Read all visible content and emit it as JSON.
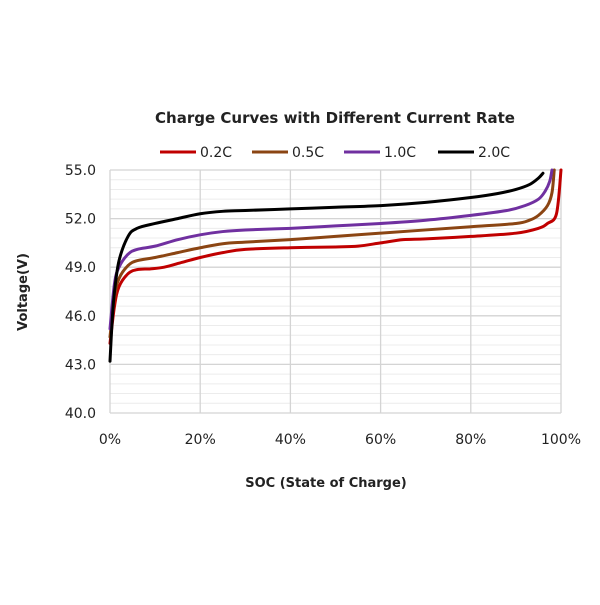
{
  "chart_data": {
    "type": "line",
    "title": "Charge Curves with Different Current Rate",
    "xlabel": "SOC (State of Charge)",
    "ylabel": "Voltage(V)",
    "xlim": [
      0,
      100
    ],
    "ylim": [
      40,
      55
    ],
    "x_ticks": [
      "0%",
      "20%",
      "40%",
      "60%",
      "80%",
      "100%"
    ],
    "x_tick_values": [
      0,
      20,
      40,
      60,
      80,
      100
    ],
    "y_ticks": [
      "40.0",
      "43.0",
      "46.0",
      "49.0",
      "52.0",
      "55.0"
    ],
    "y_tick_values": [
      40,
      43,
      46,
      49,
      52,
      55
    ],
    "y_minor_step": 0.6,
    "grid": true,
    "legend_position": "top",
    "series": [
      {
        "name": "0.2C",
        "color": "#c00000",
        "x": [
          0,
          1,
          2,
          4,
          6,
          9,
          12,
          16,
          20,
          25,
          30,
          40,
          50,
          55,
          60,
          65,
          70,
          80,
          90,
          95,
          97,
          99,
          100
        ],
        "y": [
          44.3,
          46.6,
          47.8,
          48.6,
          48.85,
          48.9,
          49.0,
          49.3,
          49.6,
          49.9,
          50.1,
          50.2,
          50.25,
          50.3,
          50.5,
          50.7,
          50.75,
          50.9,
          51.1,
          51.4,
          51.7,
          52.3,
          55.0
        ]
      },
      {
        "name": "0.5C",
        "color": "#8b4513",
        "x": [
          0,
          1,
          2,
          4,
          6,
          10,
          15,
          20,
          25,
          30,
          40,
          50,
          60,
          70,
          80,
          90,
          93,
          95,
          97,
          98,
          98.5
        ],
        "y": [
          44.7,
          47.2,
          48.3,
          49.1,
          49.4,
          49.6,
          49.9,
          50.2,
          50.45,
          50.55,
          50.7,
          50.9,
          51.1,
          51.3,
          51.5,
          51.7,
          51.9,
          52.2,
          52.8,
          53.6,
          55.0
        ]
      },
      {
        "name": "1.0C",
        "color": "#7030a0",
        "x": [
          0,
          1,
          2,
          4,
          6,
          10,
          15,
          20,
          25,
          30,
          40,
          50,
          60,
          70,
          80,
          88,
          92,
          95,
          96.5,
          97.5,
          98
        ],
        "y": [
          45.2,
          48.0,
          49.0,
          49.8,
          50.1,
          50.3,
          50.7,
          51.0,
          51.2,
          51.3,
          51.4,
          51.55,
          51.7,
          51.9,
          52.2,
          52.5,
          52.8,
          53.2,
          53.7,
          54.3,
          55.0
        ]
      },
      {
        "name": "2.0C",
        "color": "#000000",
        "x": [
          0,
          0.5,
          1,
          2,
          4,
          6,
          10,
          15,
          20,
          25,
          30,
          40,
          50,
          60,
          70,
          80,
          86,
          90,
          93,
          95,
          96
        ],
        "y": [
          43.2,
          45.8,
          47.5,
          49.4,
          50.9,
          51.4,
          51.7,
          52.0,
          52.3,
          52.45,
          52.5,
          52.6,
          52.7,
          52.8,
          53.0,
          53.3,
          53.55,
          53.8,
          54.1,
          54.5,
          54.8
        ]
      }
    ]
  }
}
